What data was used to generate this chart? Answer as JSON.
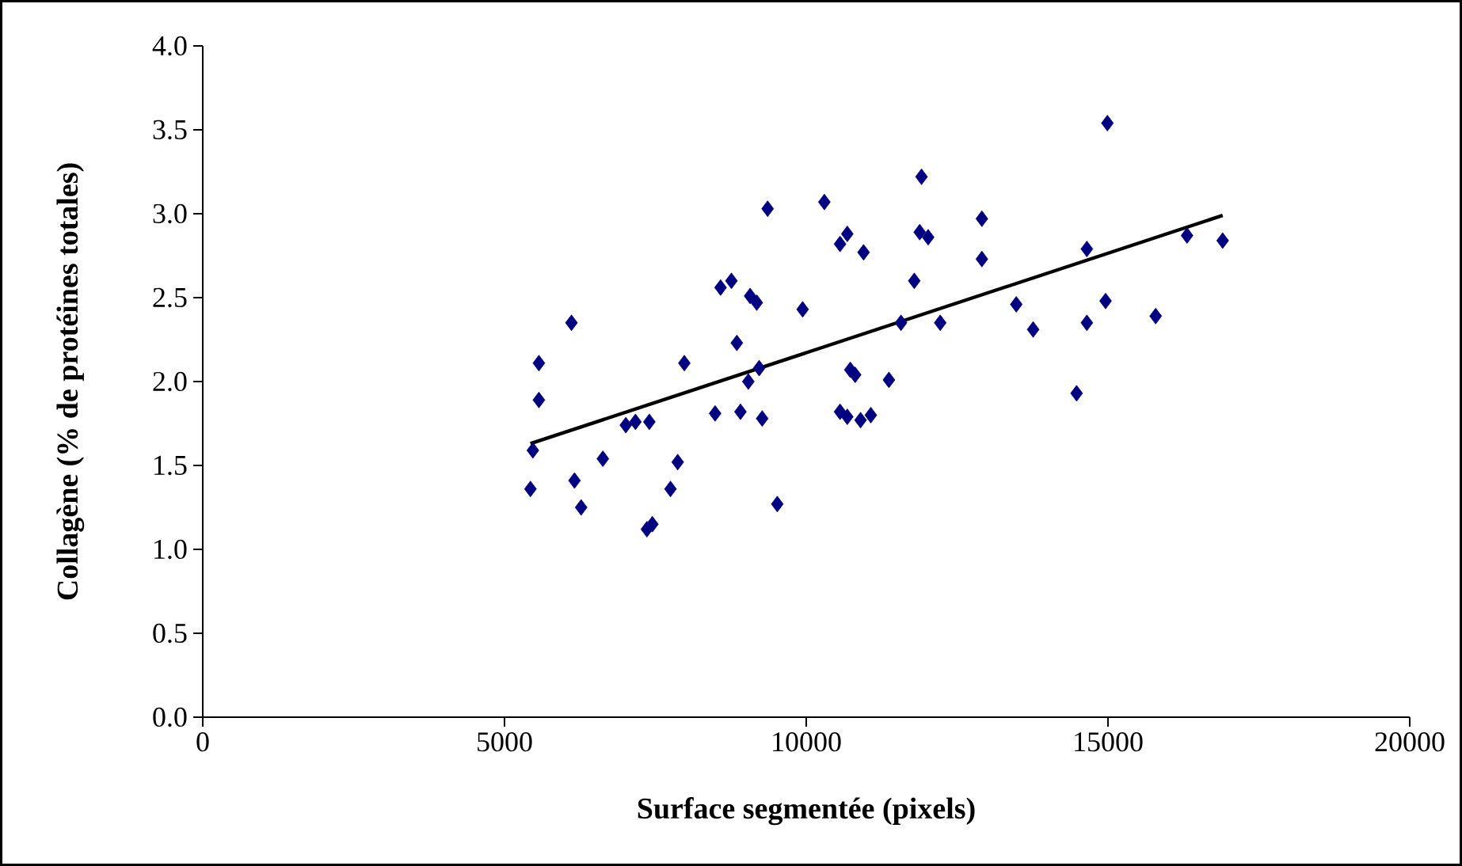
{
  "chart_data": {
    "type": "scatter",
    "xlabel": "Surface segmentée (pixels)",
    "ylabel": "Collagène (% de protéines totales)",
    "xlim": [
      0,
      20000
    ],
    "ylim": [
      0,
      4.0
    ],
    "xticks": [
      0,
      5000,
      10000,
      15000,
      20000
    ],
    "yticks": [
      {
        "value": 0,
        "label": "0.0"
      },
      {
        "value": 0.5,
        "label": "0.5"
      },
      {
        "value": 1,
        "label": "1.0"
      },
      {
        "value": 1.5,
        "label": "1.5"
      },
      {
        "value": 2,
        "label": "2.0"
      },
      {
        "value": 2.5,
        "label": "2.5"
      },
      {
        "value": 3,
        "label": "3.0"
      },
      {
        "value": 3.5,
        "label": "3.5"
      },
      {
        "value": 4,
        "label": "4.0"
      }
    ],
    "grid": false,
    "marker": "diamond",
    "series": [
      {
        "color": "#000080",
        "x": [
          5430,
          5470,
          5570,
          5570,
          6110,
          6160,
          6270,
          6630,
          7010,
          7170,
          7400,
          7360,
          7450,
          7750,
          7870,
          7980,
          8490,
          8580,
          8760,
          8850,
          8910,
          9040,
          9070,
          9180,
          9220,
          9270,
          9360,
          9520,
          9940,
          10300,
          10560,
          10680,
          10560,
          10680,
          10730,
          10810,
          10950,
          10900,
          11070,
          11370,
          11570,
          11790,
          11910,
          11880,
          12020,
          12220,
          12910,
          12910,
          13480,
          13760,
          14480,
          14650,
          14650,
          14960,
          14990,
          15790,
          16310,
          16900
        ],
        "values": [
          1.36,
          1.59,
          2.11,
          1.89,
          2.35,
          1.41,
          1.25,
          1.54,
          1.74,
          1.76,
          1.76,
          1.12,
          1.15,
          1.36,
          1.52,
          2.11,
          1.81,
          2.56,
          2.6,
          2.23,
          1.82,
          2.0,
          2.51,
          2.47,
          2.08,
          1.78,
          3.03,
          1.27,
          2.43,
          3.07,
          2.82,
          2.88,
          1.82,
          1.79,
          2.07,
          2.04,
          2.77,
          1.77,
          1.8,
          2.01,
          2.35,
          2.6,
          3.22,
          2.89,
          2.86,
          2.35,
          2.97,
          2.73,
          2.46,
          2.31,
          1.93,
          2.35,
          2.79,
          2.48,
          3.54,
          2.39,
          2.87,
          2.84
        ]
      },
      {
        "type": "line",
        "marker": "none",
        "color": "#000000",
        "x": [
          5430,
          16900
        ],
        "values": [
          1.63,
          2.99
        ]
      }
    ]
  }
}
